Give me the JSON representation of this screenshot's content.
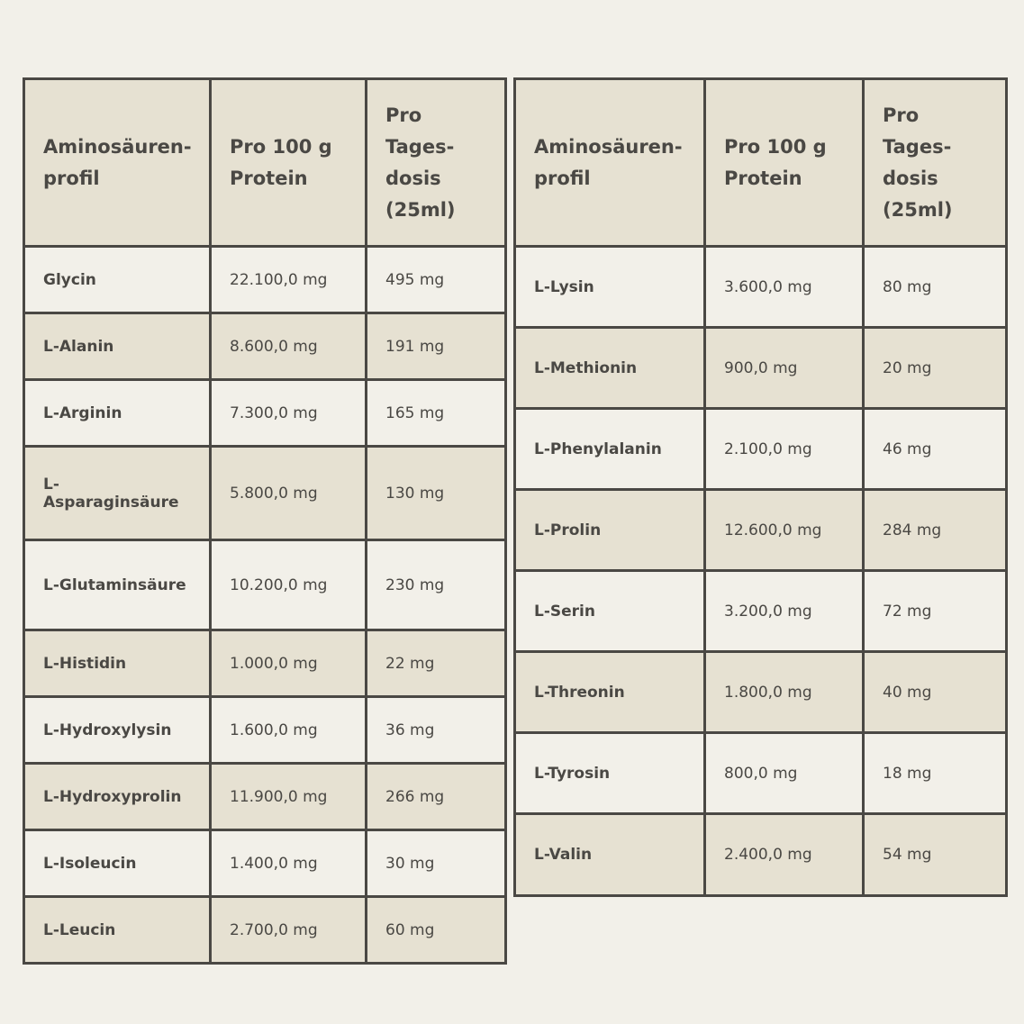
{
  "left_table": {
    "headers": [
      "Aminosäuren-\nprofil",
      "Pro 100 g\nProtein",
      "Pro\nTages-\ndosis\n(25ml)"
    ],
    "rows": [
      [
        "Glycin",
        "22.100,0 mg",
        "495 mg"
      ],
      [
        "L-Alanin",
        "8.600,0 mg",
        "191 mg"
      ],
      [
        "L-Arginin",
        "7.300,0 mg",
        "165 mg"
      ],
      [
        "L-\nAsparaginsäure",
        "5.800,0 mg",
        "130 mg"
      ],
      [
        "L-Glutaminsäure",
        "10.200,0 mg",
        "230 mg"
      ],
      [
        "L-Histidin",
        "1.000,0 mg",
        "22 mg"
      ],
      [
        "L-Hydroxylysin",
        "1.600,0 mg",
        "36 mg"
      ],
      [
        "L-Hydroxyprolin",
        "11.900,0 mg",
        "266 mg"
      ],
      [
        "L-Isoleucin",
        "1.400,0 mg",
        "30 mg"
      ],
      [
        "L-Leucin",
        "2.700,0 mg",
        "60 mg"
      ]
    ]
  },
  "right_table": {
    "headers": [
      "Aminosäuren-\nprofil",
      "Pro 100 g\nProtein",
      "Pro\nTages-\ndosis\n(25ml)"
    ],
    "rows": [
      [
        "L-Lysin",
        "3.600,0 mg",
        "80 mg"
      ],
      [
        "L-Methionin",
        "900,0 mg",
        "20 mg"
      ],
      [
        "L-Phenylalanin",
        "2.100,0 mg",
        "46 mg"
      ],
      [
        "L-Prolin",
        "12.600,0 mg",
        "284 mg"
      ],
      [
        "L-Serin",
        "3.200,0 mg",
        "72 mg"
      ],
      [
        "L-Threonin",
        "1.800,0 mg",
        "40 mg"
      ],
      [
        "L-Tyrosin",
        "800,0 mg",
        "18 mg"
      ],
      [
        "L-Valin",
        "2.400,0 mg",
        "54 mg"
      ]
    ]
  },
  "colors": {
    "background": "#f2f0e9",
    "shaded": "#e6e1d2",
    "border": "#4a4844",
    "text": "#4a4844"
  }
}
